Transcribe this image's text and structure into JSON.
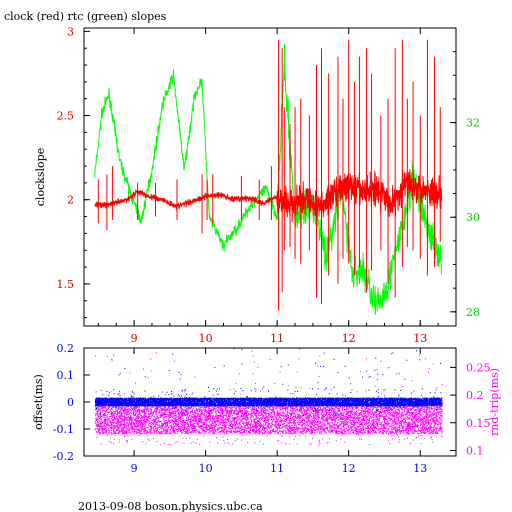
{
  "title": "clock (red) rtc (green) slopes",
  "footer": "2013-09-08  boson.physics.ubc.ca",
  "colors": {
    "red": "#ff0000",
    "green": "#00ff00",
    "blue": "#0000ff",
    "magenta": "#ff00ff",
    "dark_red": "#cc0000",
    "dark_green": "#00cc00",
    "black": "#000000"
  },
  "chart_data": [
    {
      "type": "line",
      "title": "clock (red) rtc (green) slopes",
      "xlabel": "",
      "ylabel": "clockslope",
      "xlim": [
        8.3,
        13.5
      ],
      "ylim": [
        1.25,
        3.02
      ],
      "y2lim": [
        27.7,
        34.0
      ],
      "xticks": [
        "9",
        "10",
        "11",
        "12",
        "13"
      ],
      "yticks": [
        "1.5",
        "2",
        "2.5",
        "3"
      ],
      "y2ticks": [
        "28",
        "30",
        "32"
      ],
      "grid": false,
      "series": [
        {
          "axis": "left",
          "color": "red",
          "x": [
            8.45,
            8.6,
            8.75,
            8.9,
            9.05,
            9.2,
            9.4,
            9.6,
            9.8,
            10.0,
            10.2,
            10.4,
            10.6,
            10.8,
            11.0,
            11.2,
            11.4,
            11.6,
            11.8,
            12.0,
            12.2,
            12.4,
            12.6,
            12.8,
            13.0,
            13.15,
            13.3
          ],
          "values": [
            1.97,
            1.97,
            1.98,
            2.0,
            2.05,
            2.02,
            2.0,
            1.96,
            1.99,
            2.02,
            2.03,
            2.0,
            2.01,
            1.98,
            2.02,
            1.97,
            2.0,
            1.95,
            2.05,
            2.08,
            2.05,
            2.07,
            1.97,
            2.1,
            2.08,
            2.05,
            2.03
          ]
        },
        {
          "axis": "right",
          "color": "green",
          "x": [
            8.45,
            8.55,
            8.65,
            8.8,
            8.95,
            9.1,
            9.25,
            9.4,
            9.55,
            9.7,
            9.85,
            9.95,
            10.05,
            10.25,
            10.45,
            10.65,
            10.85,
            11.0,
            11.1,
            11.25,
            11.5,
            11.7,
            11.9,
            12.05,
            12.2,
            12.4,
            12.55,
            12.75,
            12.9,
            13.1,
            13.3
          ],
          "values": [
            30.9,
            32.2,
            32.6,
            31.2,
            30.5,
            29.9,
            31.0,
            32.4,
            33.0,
            31.0,
            32.6,
            32.9,
            30.0,
            29.4,
            29.8,
            30.3,
            30.6,
            30.0,
            33.2,
            30.0,
            30.3,
            29.2,
            30.6,
            28.8,
            28.9,
            28.1,
            28.6,
            29.8,
            30.8,
            29.8,
            29.1
          ]
        }
      ],
      "spikes": {
        "color": "red",
        "x": [
          8.5,
          8.62,
          8.7,
          9.05,
          9.3,
          9.6,
          9.95,
          10.02,
          10.1,
          10.5,
          10.75,
          10.92,
          11.02,
          11.07,
          11.1,
          11.18,
          11.25,
          11.33,
          11.45,
          11.55,
          11.62,
          11.72,
          11.85,
          11.92,
          12.0,
          12.08,
          12.15,
          12.25,
          12.32,
          12.45,
          12.55,
          12.65,
          12.75,
          12.82,
          12.9,
          13.0,
          13.1,
          13.2,
          13.28
        ],
        "hi": [
          2.12,
          2.15,
          2.2,
          2.1,
          2.1,
          2.12,
          2.15,
          2.12,
          2.15,
          2.14,
          2.12,
          2.2,
          2.95,
          2.9,
          2.55,
          2.45,
          2.55,
          2.6,
          2.5,
          2.8,
          2.9,
          2.75,
          2.85,
          2.6,
          2.95,
          2.7,
          2.85,
          2.9,
          2.75,
          2.5,
          2.6,
          2.9,
          2.95,
          2.6,
          2.7,
          2.5,
          2.95,
          2.85,
          2.55
        ],
        "lo": [
          1.86,
          1.82,
          1.88,
          1.88,
          1.9,
          1.88,
          1.8,
          1.88,
          1.86,
          1.88,
          1.88,
          1.88,
          1.34,
          1.45,
          1.7,
          1.72,
          1.65,
          1.62,
          1.7,
          1.42,
          1.38,
          1.55,
          1.5,
          1.65,
          1.62,
          1.55,
          1.6,
          1.45,
          1.58,
          1.7,
          1.5,
          1.42,
          1.6,
          1.72,
          1.7,
          1.65,
          1.55,
          1.6,
          1.75
        ]
      }
    },
    {
      "type": "scatter",
      "title": "",
      "ylabel": "offset(ms)",
      "y2label": "rnd-trip(ms)",
      "xlim": [
        8.3,
        13.5
      ],
      "ylim": [
        -0.2,
        0.2
      ],
      "y2lim": [
        0.09,
        0.285
      ],
      "xticks": [
        "9",
        "10",
        "11",
        "12",
        "13"
      ],
      "yticks": [
        "-0.2",
        "-0.1",
        "0",
        "0.1",
        "0.2"
      ],
      "y2ticks": [
        "0.1",
        "0.15",
        "0.2",
        "0.25"
      ],
      "grid": false,
      "series": [
        {
          "name": "offset(ms)",
          "color": "blue",
          "x_range": [
            8.45,
            13.3
          ],
          "band": [
            -0.015,
            0.015
          ]
        },
        {
          "name": "rnd-trip(ms)",
          "color": "magenta",
          "x_range": [
            8.45,
            13.3
          ],
          "band": [
            0.13,
            0.185
          ]
        }
      ]
    }
  ]
}
